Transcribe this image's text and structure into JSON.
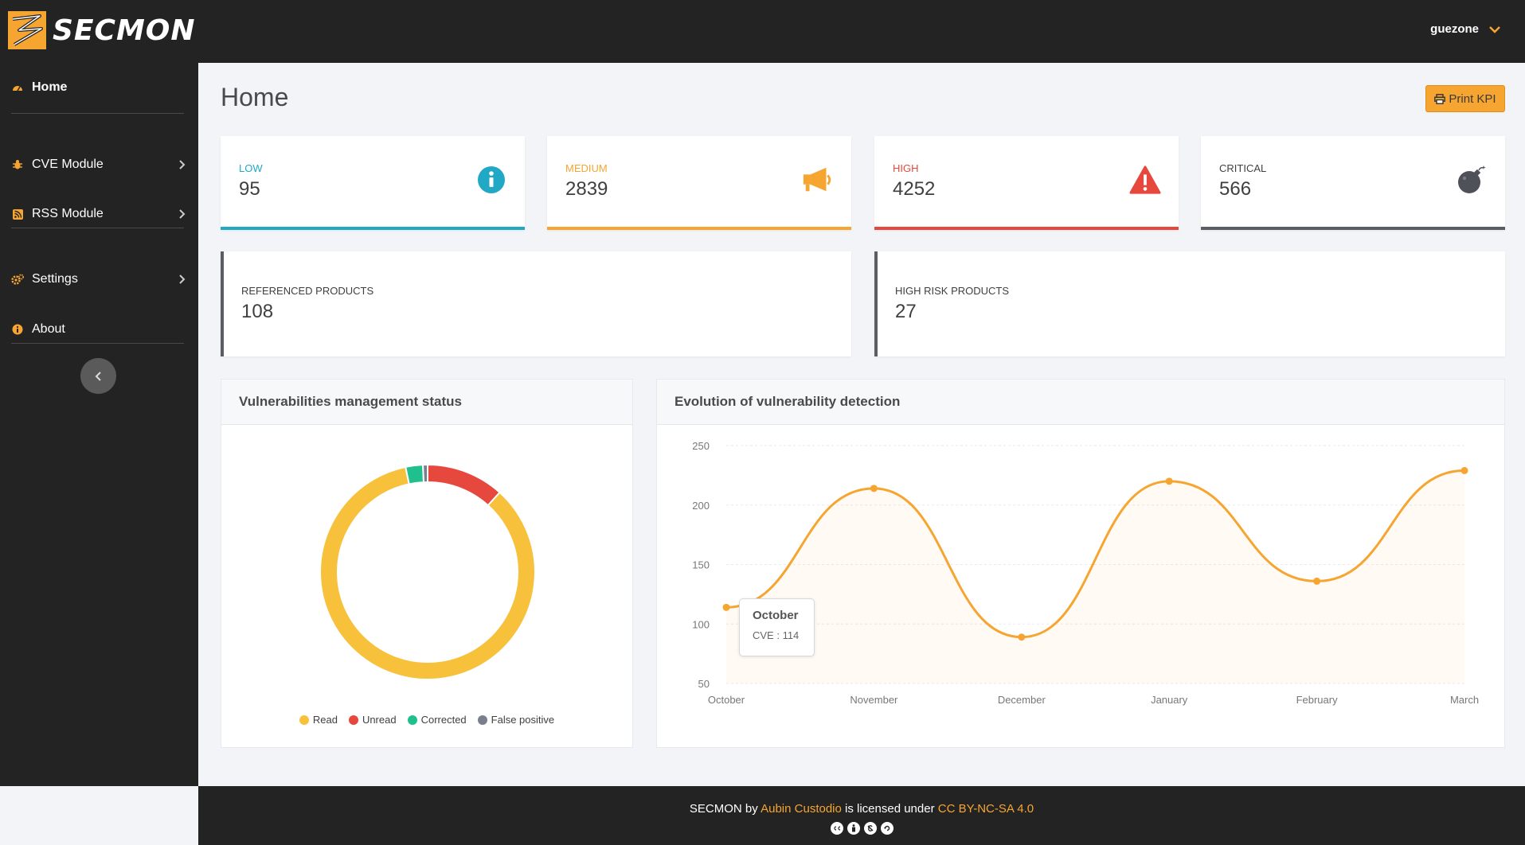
{
  "app": {
    "brand": "SECMON"
  },
  "header": {
    "username": "guezone"
  },
  "sidebar": {
    "items": [
      {
        "label": "Home",
        "icon": "dashboard-icon"
      },
      {
        "label": "CVE Module",
        "icon": "bug-icon"
      },
      {
        "label": "RSS Module",
        "icon": "rss-icon"
      },
      {
        "label": "Settings",
        "icon": "cogs-icon"
      },
      {
        "label": "About",
        "icon": "info-icon"
      }
    ]
  },
  "page": {
    "title": "Home",
    "print_label": "Print KPI"
  },
  "kpis": [
    {
      "label": "LOW",
      "value": "95",
      "color": "#20a8c4",
      "icon": "info-circle-icon"
    },
    {
      "label": "MEDIUM",
      "value": "2839",
      "color": "#f6a531",
      "icon": "megaphone-icon"
    },
    {
      "label": "HIGH",
      "value": "4252",
      "color": "#e6483d",
      "icon": "warning-icon"
    },
    {
      "label": "CRITICAL",
      "value": "566",
      "color": "#5b5d66",
      "icon": "bomb-icon"
    }
  ],
  "stats": [
    {
      "label": "REFERENCED PRODUCTS",
      "value": "108"
    },
    {
      "label": "HIGH RISK PRODUCTS",
      "value": "27"
    }
  ],
  "donut_card": {
    "title": "Vulnerabilities management status"
  },
  "line_card": {
    "title": "Evolution of vulnerability detection"
  },
  "tooltip": {
    "title": "October",
    "value": "CVE : 114"
  },
  "chart_data": [
    {
      "type": "pie",
      "categories": [
        "Read",
        "Unread",
        "Corrected",
        "False positive"
      ],
      "values": [
        85,
        11.7,
        2.6,
        0.7
      ],
      "colors": [
        "#f7c13b",
        "#e6483d",
        "#1fc08e",
        "#7a7f8e"
      ],
      "legend": "bottom",
      "title": ""
    },
    {
      "type": "area",
      "categories": [
        "October",
        "November",
        "December",
        "January",
        "February",
        "March"
      ],
      "series": [
        {
          "name": "CVE",
          "values": [
            114,
            214,
            89,
            220,
            136,
            229
          ]
        }
      ],
      "ylim": [
        50,
        250
      ],
      "yticks": [
        50,
        100,
        150,
        200,
        250
      ],
      "color": "#f6a531",
      "grid": true,
      "title": ""
    }
  ],
  "footer": {
    "prefix": "SECMON by ",
    "author": "Aubin Custodio",
    "middle": " is licensed under ",
    "license": "CC BY-NC-SA 4.0"
  }
}
